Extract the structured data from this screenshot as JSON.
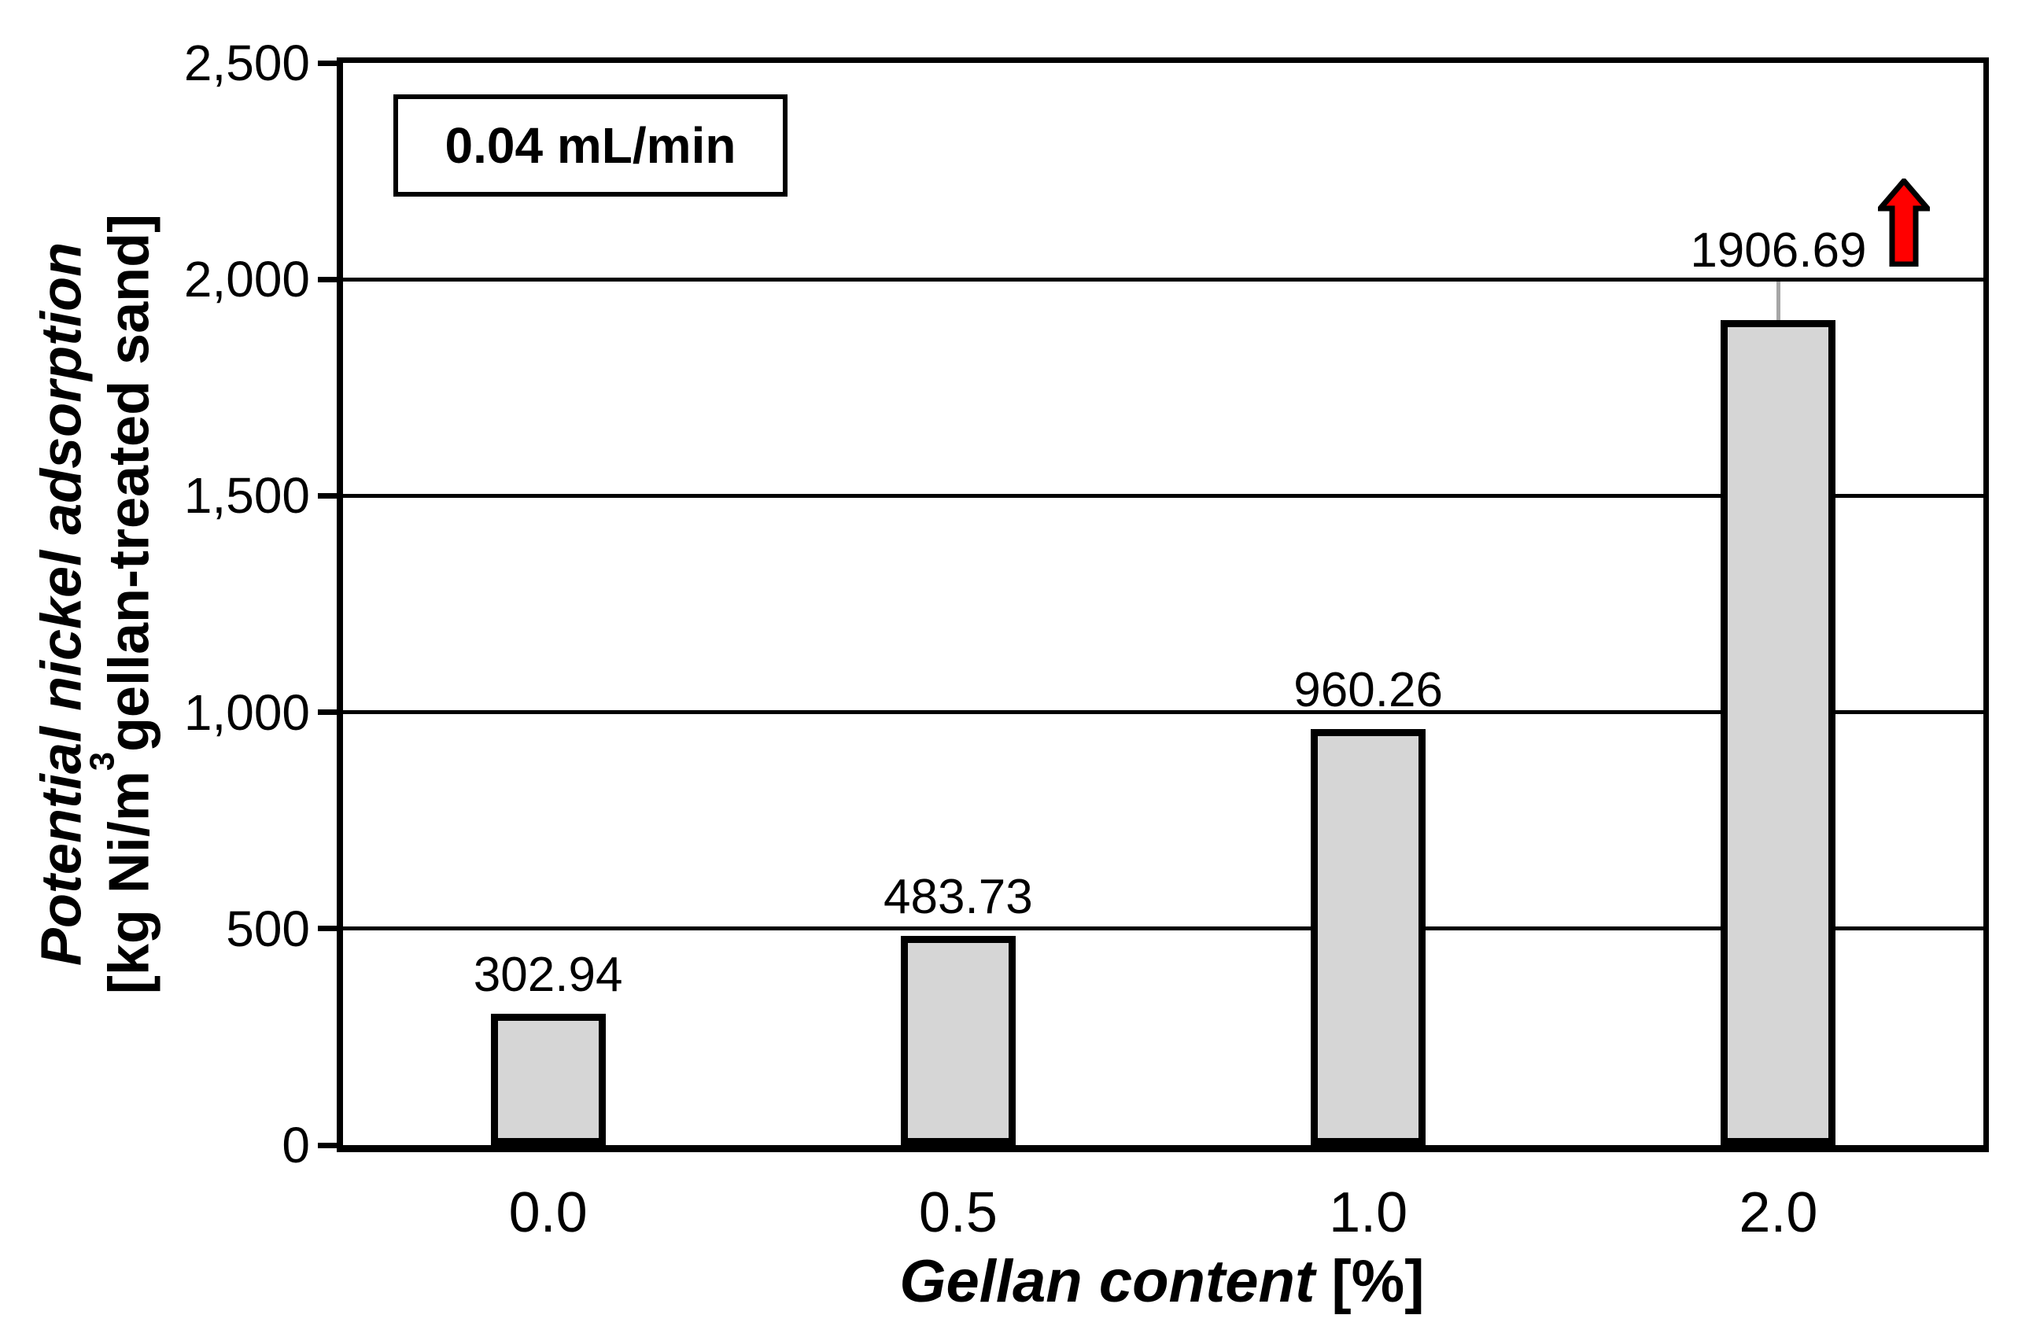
{
  "chart_data": {
    "type": "bar",
    "categories": [
      "0.0",
      "0.5",
      "1.0",
      "2.0"
    ],
    "values": [
      302.94,
      483.73,
      960.26,
      1906.69
    ],
    "value_labels": [
      "302.94",
      "483.73",
      "960.26",
      "1906.69"
    ],
    "xlabel": {
      "main": "Gellan content",
      "unit": "[%]"
    },
    "ylabel": {
      "line1": "Potential nickel adsorption",
      "line2_prefix": "[kg Ni/m",
      "line2_sup": "3",
      "line2_suffix": "gellan-treated sand]"
    },
    "ylim": [
      0,
      2500
    ],
    "yticks": [
      {
        "value": 0,
        "label": "0"
      },
      {
        "value": 500,
        "label": "500"
      },
      {
        "value": 1000,
        "label": "1,000"
      },
      {
        "value": 1500,
        "label": "1,500"
      },
      {
        "value": 2000,
        "label": "2,000"
      },
      {
        "value": 2500,
        "label": "2,500"
      }
    ],
    "grid": true,
    "legend": {
      "label": "0.04 mL/min",
      "position": "top-left"
    },
    "bar_style": {
      "fill": "#D6D6D6",
      "border": "#000000"
    },
    "annotations": {
      "up_arrow": {
        "shape": "up-arrow",
        "color": "#FF0000",
        "outline": "#000000",
        "near_category": "2.0"
      },
      "label_leader_line": {
        "category_index": 3,
        "from_gridline_value": 2000,
        "color": "#A6A6A6"
      }
    }
  }
}
